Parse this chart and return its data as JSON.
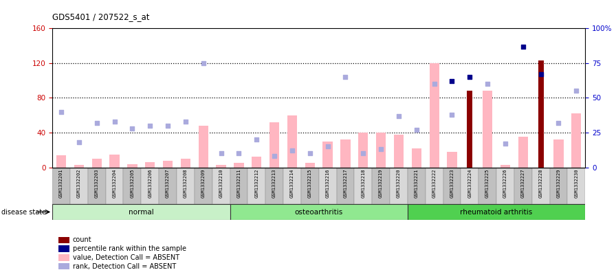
{
  "title": "GDS5401 / 207522_s_at",
  "samples": [
    "GSM1332201",
    "GSM1332202",
    "GSM1332203",
    "GSM1332204",
    "GSM1332205",
    "GSM1332206",
    "GSM1332207",
    "GSM1332208",
    "GSM1332209",
    "GSM1332210",
    "GSM1332211",
    "GSM1332212",
    "GSM1332213",
    "GSM1332214",
    "GSM1332215",
    "GSM1332216",
    "GSM1332217",
    "GSM1332218",
    "GSM1332219",
    "GSM1332220",
    "GSM1332221",
    "GSM1332222",
    "GSM1332223",
    "GSM1332224",
    "GSM1332225",
    "GSM1332226",
    "GSM1332227",
    "GSM1332228",
    "GSM1332229",
    "GSM1332230"
  ],
  "value_absent": [
    14,
    3,
    10,
    15,
    4,
    6,
    8,
    10,
    48,
    3,
    5,
    12,
    52,
    60,
    5,
    30,
    32,
    40,
    40,
    38,
    22,
    120,
    18,
    0,
    88,
    3,
    35,
    0,
    32,
    62
  ],
  "rank_absent": [
    40,
    18,
    32,
    33,
    28,
    30,
    30,
    33,
    75,
    10,
    10,
    20,
    8,
    12,
    10,
    15,
    65,
    10,
    13,
    37,
    27,
    60,
    38,
    0,
    60,
    17,
    0,
    0,
    32,
    55
  ],
  "count_present": [
    0,
    0,
    0,
    0,
    0,
    0,
    0,
    0,
    0,
    0,
    0,
    0,
    0,
    0,
    0,
    0,
    0,
    0,
    0,
    0,
    0,
    0,
    0,
    88,
    0,
    0,
    0,
    123,
    0,
    0
  ],
  "percentile_present": [
    0,
    0,
    0,
    0,
    0,
    0,
    0,
    0,
    0,
    0,
    0,
    0,
    0,
    0,
    0,
    0,
    0,
    0,
    0,
    0,
    0,
    0,
    62,
    65,
    0,
    0,
    87,
    67,
    0,
    0
  ],
  "disease_groups": [
    {
      "label": "normal",
      "start": 0,
      "end": 9,
      "color": "#C8F0C8"
    },
    {
      "label": "osteoarthritis",
      "start": 10,
      "end": 19,
      "color": "#90E890"
    },
    {
      "label": "rheumatoid arthritis",
      "start": 20,
      "end": 29,
      "color": "#50D050"
    }
  ],
  "ylim_left": [
    0,
    160
  ],
  "ylim_right": [
    0,
    100
  ],
  "yticks_left": [
    0,
    40,
    80,
    120,
    160
  ],
  "yticks_right": [
    0,
    25,
    50,
    75,
    100
  ],
  "ytick_labels_right": [
    "0",
    "25",
    "50",
    "75",
    "100%"
  ],
  "color_bar_absent": "#FFB6C1",
  "color_bar_present": "#8B0000",
  "color_rank_absent": "#AAAADD",
  "color_rank_present": "#00008B",
  "axis_label_color_left": "#CC0000",
  "axis_label_color_right": "#0000CC",
  "legend_items": [
    {
      "label": "count",
      "color": "#8B0000"
    },
    {
      "label": "percentile rank within the sample",
      "color": "#00008B"
    },
    {
      "label": "value, Detection Call = ABSENT",
      "color": "#FFB6C1"
    },
    {
      "label": "rank, Detection Call = ABSENT",
      "color": "#AAAADD"
    }
  ]
}
